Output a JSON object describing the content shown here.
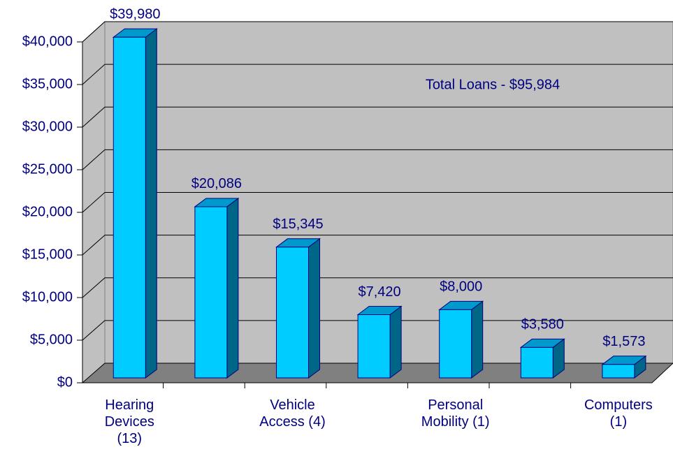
{
  "chart_data": {
    "type": "bar",
    "annotation": "Total Loans - $95,984",
    "categories": [
      "Hearing Devices (13)",
      null,
      "Vehicle Access (4)",
      null,
      "Personal Mobility (1)",
      null,
      "Computers (1)"
    ],
    "values": [
      39980,
      20086,
      15345,
      7420,
      8000,
      3580,
      1573
    ],
    "value_labels": [
      "$39,980",
      "$20,086",
      "$15,345",
      "$7,420",
      "$8,000",
      "$3,580",
      "$1,573"
    ],
    "color": "#00ccff",
    "ylim": [
      0,
      40000
    ],
    "yticks": [
      {
        "value": 0,
        "label": "$0"
      },
      {
        "value": 5000,
        "label": "$5,000"
      },
      {
        "value": 10000,
        "label": "$10,000"
      },
      {
        "value": 15000,
        "label": "$15,000"
      },
      {
        "value": 20000,
        "label": "$20,000"
      },
      {
        "value": 25000,
        "label": "$25,000"
      },
      {
        "value": 30000,
        "label": "$30,000"
      },
      {
        "value": 35000,
        "label": "$35,000"
      },
      {
        "value": 40000,
        "label": "$40,000"
      }
    ],
    "grid": true
  }
}
